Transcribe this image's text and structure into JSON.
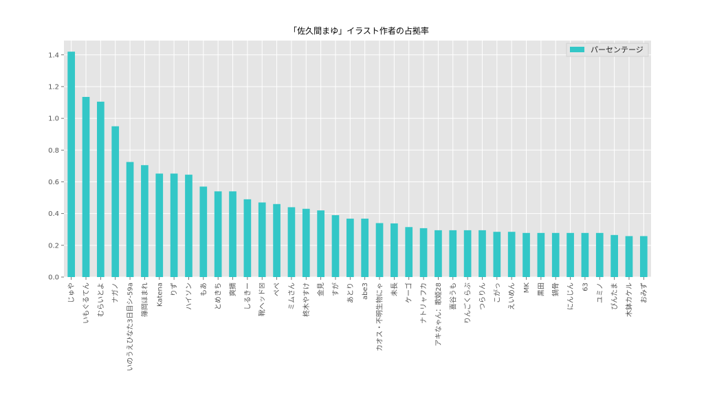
{
  "chart_data": {
    "type": "bar",
    "title": "「佐久間まゆ」イラスト作者の占拠率",
    "xlabel": "",
    "ylabel": "",
    "ylim": [
      0,
      1.49
    ],
    "yticks": [
      0.0,
      0.2,
      0.4,
      0.6,
      0.8,
      1.0,
      1.2,
      1.4
    ],
    "ytick_labels": [
      "0.0",
      "0.2",
      "0.4",
      "0.6",
      "0.8",
      "1.0",
      "1.2",
      "1.4"
    ],
    "grid": true,
    "legend_position": "top-right",
    "bar_color": "#33C7C7",
    "background_color": "#E5E5E5",
    "grid_color": "#FFFFFF",
    "categories": [
      "じゅや",
      "いもぐるてん",
      "むらいとよ",
      "ナガノ",
      "いのうえひなた3日目シ-59a",
      "篠岡ほまれ",
      "Katena",
      "りず",
      "ハイソン",
      "もあ",
      "とめきち",
      "爽摘",
      "しるきー",
      "靴ヘッド☒",
      "ぺぺ",
      "ミムさん",
      "柊木やすけ",
      "金見",
      "すが",
      "あとり",
      "abe3",
      "カオス・不明生物にゃ",
      "未長",
      "ケーゴ",
      "ナトリャフカ",
      "アキなゃん：歌姫28",
      "喜谷うも",
      "りんごくらぶ",
      "つらりん",
      "こがっ",
      "えいめん",
      "MK",
      "黒田",
      "鍋骨",
      "にんじん",
      "63",
      "ユミノ",
      "ぴんたま",
      "木鉢カケル",
      "おみず"
    ],
    "series": [
      {
        "name": "パーセンテージ",
        "values": [
          1.42,
          1.135,
          1.105,
          0.95,
          0.725,
          0.705,
          0.652,
          0.652,
          0.645,
          0.57,
          0.54,
          0.54,
          0.49,
          0.47,
          0.46,
          0.44,
          0.43,
          0.42,
          0.39,
          0.368,
          0.368,
          0.34,
          0.338,
          0.315,
          0.308,
          0.295,
          0.295,
          0.295,
          0.295,
          0.285,
          0.285,
          0.278,
          0.278,
          0.278,
          0.278,
          0.278,
          0.278,
          0.265,
          0.258,
          0.258
        ]
      }
    ]
  }
}
